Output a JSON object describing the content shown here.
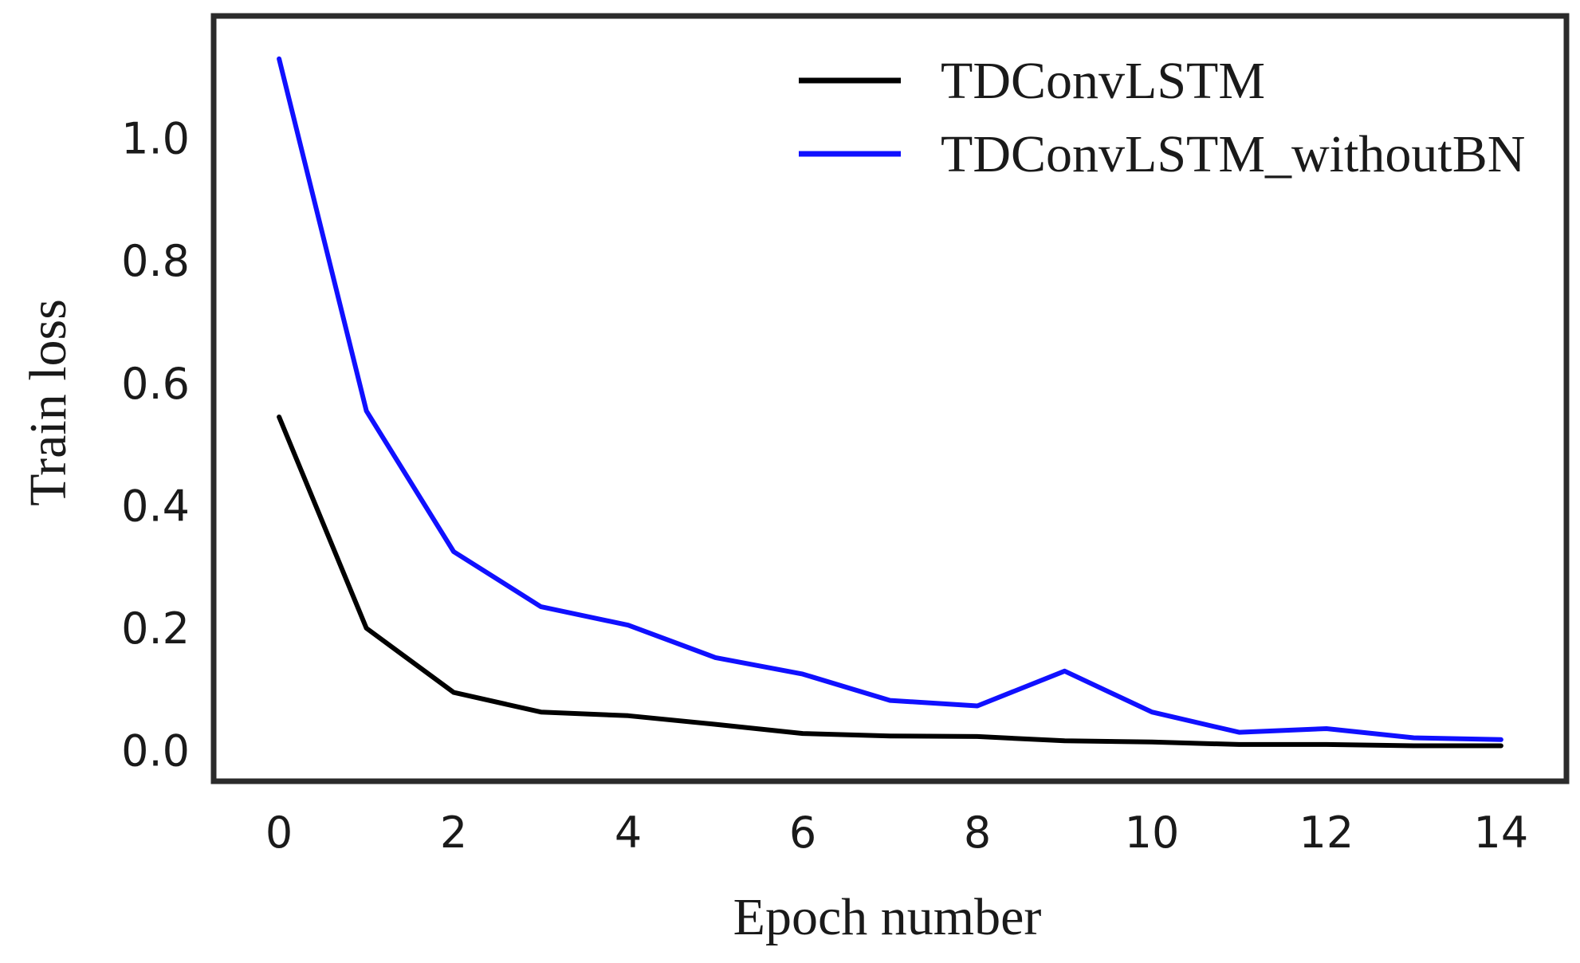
{
  "chart_data": {
    "type": "line",
    "title": "",
    "xlabel": "Epoch number",
    "ylabel": "Train loss",
    "x": [
      0,
      1,
      2,
      3,
      4,
      5,
      6,
      7,
      8,
      9,
      10,
      11,
      12,
      13,
      14
    ],
    "xlim": [
      -0.75,
      14.75
    ],
    "ylim": [
      -0.05,
      1.2
    ],
    "x_ticks": [
      0,
      2,
      4,
      6,
      8,
      10,
      12,
      14
    ],
    "x_tick_labels": [
      "0",
      "2",
      "4",
      "6",
      "8",
      "10",
      "12",
      "14"
    ],
    "y_ticks": [
      0.0,
      0.2,
      0.4,
      0.6,
      0.8,
      1.0
    ],
    "y_tick_labels": [
      "0.0",
      "0.2",
      "0.4",
      "0.6",
      "0.8",
      "1.0"
    ],
    "grid": false,
    "legend_position": "top-right",
    "series": [
      {
        "name": "TDConvLSTM",
        "color": "#000000",
        "values": [
          0.545,
          0.2,
          0.095,
          0.063,
          0.057,
          0.043,
          0.028,
          0.024,
          0.023,
          0.016,
          0.014,
          0.01,
          0.01,
          0.008,
          0.008
        ]
      },
      {
        "name": "TDConvLSTM_withoutBN",
        "color": "#1010ff",
        "values": [
          1.13,
          0.555,
          0.325,
          0.235,
          0.205,
          0.152,
          0.125,
          0.082,
          0.073,
          0.13,
          0.063,
          0.03,
          0.036,
          0.021,
          0.018
        ]
      }
    ]
  }
}
